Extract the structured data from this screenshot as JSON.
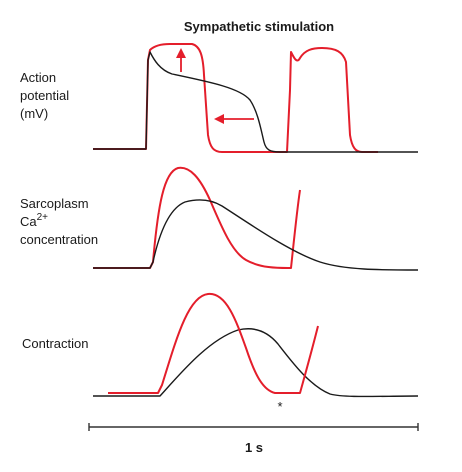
{
  "title": "Sympathetic stimulation",
  "panels": {
    "action_potential": {
      "label_lines": [
        "Action",
        "potential",
        "(mV)"
      ]
    },
    "calcium": {
      "label_line1": "Sarcoplasm",
      "label_ca": "Ca",
      "label_ca_sup": "2+",
      "label_line3": "concentration"
    },
    "contraction": {
      "label": "Contraction",
      "asterisk": "*"
    }
  },
  "scale_bar": {
    "label": "1 s"
  },
  "colors": {
    "control_trace": "#1a1a1a",
    "sympathetic_trace": "#e41e2b"
  }
}
